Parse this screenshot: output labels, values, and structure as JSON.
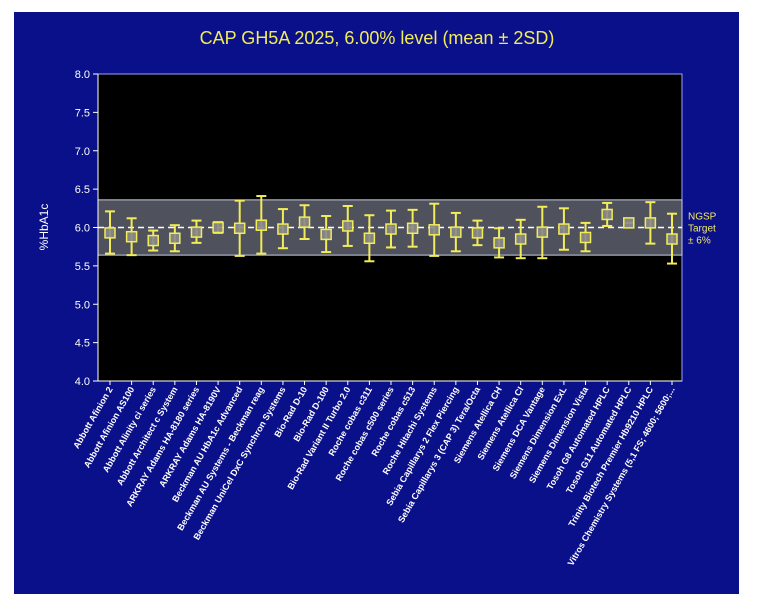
{
  "chart_data": {
    "type": "scatter",
    "title": "CAP GH5A 2025, 6.00% level (mean ± 2SD)",
    "ylabel": "%HbA1c",
    "xlabel": "",
    "ylim": [
      4.0,
      8.0
    ],
    "yticks": [
      "4.0",
      "4.5",
      "5.0",
      "5.5",
      "6.0",
      "6.5",
      "7.0",
      "7.5",
      "8.0"
    ],
    "target": 6.0,
    "band": [
      5.64,
      6.36
    ],
    "band_label": [
      "NGSP",
      "Target",
      "± 6%"
    ],
    "colors": {
      "background": "#0a0f8a",
      "plot": "#000000",
      "marker": "#f2ec58",
      "band": "#8f96aa"
    },
    "categories": [
      "Abbott Afinion 2",
      "Abbott Afinion AS100",
      "Abbott Alinity ci series",
      "Abbott Architect c System",
      "ARKRAY Adams HA-8180 series",
      "ARKRAY Adams HA-8190V",
      "Beckman AU HbA1c Advanced",
      "Beckman AU Systems - Beckman reag",
      "Beckman UniCel DxC Synchron Systems",
      "Bio-Rad D-10",
      "Bio-Rad D-100",
      "Bio-Rad Variant II Turbo 2.0",
      "Roche cobas c311",
      "Roche cobas c500 series",
      "Roche cobas c513",
      "Roche Hitachi Systems",
      "Sebia Capillarys 2 Flex Piercing",
      "Sebia Capillarys 3 (CAP 3) Tera/Octa",
      "Siemens Atellica CH",
      "Siemens Atellica CI",
      "Siemens DCA Vantage",
      "Siemens Dimension ExL",
      "Siemens Dimension Vista",
      "Tosoh G8 Automated HPLC",
      "Tosoh G11 Automated HPLC",
      "Trinity Biotech Premier Hb9210 HPLC",
      "Vitros Chemistry Systems (5,1 FS; 4600; 5600;..."
    ],
    "means": [
      5.93,
      5.88,
      5.83,
      5.86,
      5.94,
      6.0,
      5.99,
      6.03,
      5.98,
      6.07,
      5.91,
      6.02,
      5.86,
      5.98,
      5.99,
      5.97,
      5.94,
      5.93,
      5.8,
      5.85,
      5.94,
      5.98,
      5.87,
      6.17,
      6.06,
      6.06,
      5.85
    ],
    "lower": [
      5.66,
      5.64,
      5.7,
      5.69,
      5.8,
      5.93,
      5.63,
      5.66,
      5.73,
      5.85,
      5.68,
      5.76,
      5.56,
      5.74,
      5.75,
      5.63,
      5.69,
      5.77,
      5.61,
      5.6,
      5.6,
      5.71,
      5.69,
      6.02,
      6.06,
      5.79,
      5.53
    ],
    "upper": [
      6.21,
      6.12,
      5.96,
      6.03,
      6.09,
      6.07,
      6.35,
      6.41,
      6.24,
      6.29,
      6.15,
      6.28,
      6.16,
      6.22,
      6.23,
      6.31,
      6.19,
      6.09,
      5.99,
      6.1,
      6.27,
      6.25,
      6.06,
      6.32,
      6.06,
      6.33,
      6.18
    ]
  }
}
